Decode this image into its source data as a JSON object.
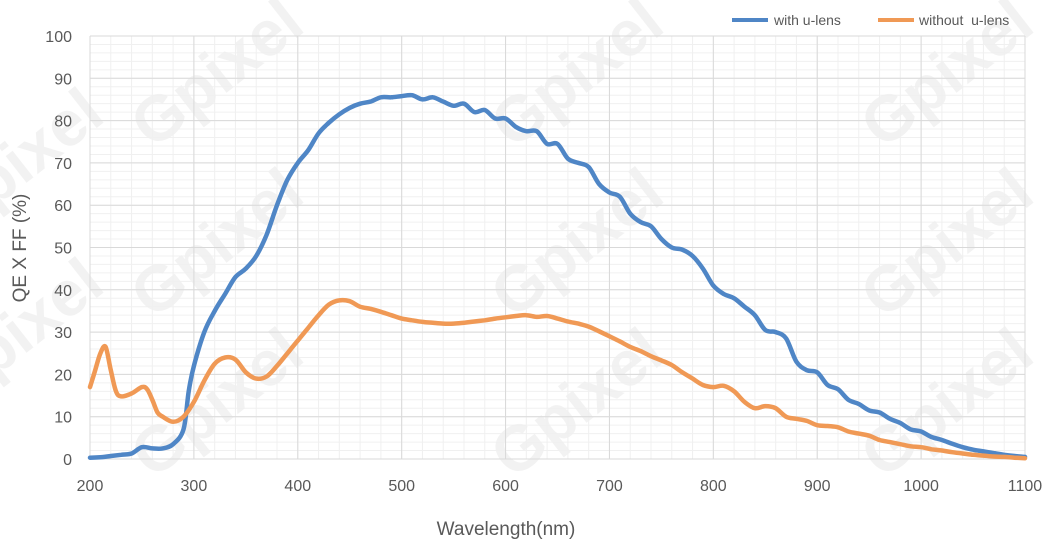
{
  "watermark": {
    "text": "Gpixel"
  },
  "chart_data": {
    "type": "line",
    "title": "",
    "xlabel": "Wavelength(nm)",
    "ylabel": "QE X FF (%)",
    "xlim": [
      200,
      1100
    ],
    "ylim": [
      0,
      100
    ],
    "xticks": [
      200,
      300,
      400,
      500,
      600,
      700,
      800,
      900,
      1000,
      1100
    ],
    "yticks": [
      0,
      10,
      20,
      30,
      40,
      50,
      60,
      70,
      80,
      90,
      100
    ],
    "grid": true,
    "legend_position": "top-right",
    "series": [
      {
        "name": "with u-lens",
        "color": "#4f86c6",
        "x": [
          200,
          210,
          220,
          230,
          240,
          250,
          260,
          270,
          280,
          290,
          295,
          300,
          310,
          320,
          330,
          340,
          350,
          360,
          370,
          380,
          390,
          400,
          410,
          420,
          430,
          440,
          450,
          460,
          470,
          480,
          490,
          500,
          510,
          520,
          530,
          540,
          550,
          560,
          570,
          580,
          590,
          600,
          610,
          620,
          630,
          640,
          650,
          660,
          670,
          680,
          690,
          700,
          710,
          720,
          730,
          740,
          750,
          760,
          770,
          780,
          790,
          800,
          810,
          820,
          830,
          840,
          850,
          860,
          870,
          880,
          890,
          900,
          910,
          920,
          930,
          940,
          950,
          960,
          970,
          980,
          990,
          1000,
          1010,
          1020,
          1030,
          1040,
          1050,
          1060,
          1070,
          1080,
          1090,
          1100
        ],
        "y": [
          0.3,
          0.4,
          0.7,
          1.0,
          1.3,
          2.8,
          2.5,
          2.5,
          3.5,
          7,
          16,
          22,
          30,
          35,
          39,
          43,
          45,
          48,
          53,
          60,
          66,
          70,
          73,
          77,
          79.5,
          81.5,
          83,
          84,
          84.5,
          85.5,
          85.5,
          85.8,
          86,
          85,
          85.5,
          84.5,
          83.5,
          84,
          82,
          82.5,
          80.5,
          80.5,
          78.5,
          77.5,
          77.5,
          74.5,
          74.5,
          71,
          70,
          69,
          65,
          63,
          62,
          58,
          56,
          55,
          52,
          50,
          49.5,
          48,
          45,
          41,
          39,
          38,
          36,
          34,
          30.5,
          30,
          28.5,
          23,
          21,
          20.5,
          17.5,
          16.5,
          14,
          13,
          11.5,
          11,
          9.5,
          8.5,
          7,
          6.5,
          5.2,
          4.5,
          3.6,
          2.8,
          2.2,
          1.8,
          1.4,
          1.0,
          0.7,
          0.5
        ]
      },
      {
        "name": "without  u-lens",
        "color": "#f09955",
        "x": [
          200,
          205,
          210,
          215,
          220,
          225,
          230,
          240,
          250,
          255,
          260,
          265,
          270,
          280,
          290,
          300,
          310,
          320,
          330,
          340,
          350,
          360,
          370,
          380,
          390,
          400,
          410,
          420,
          430,
          440,
          450,
          460,
          470,
          480,
          490,
          500,
          510,
          520,
          530,
          540,
          550,
          560,
          570,
          580,
          590,
          600,
          610,
          620,
          630,
          640,
          650,
          660,
          670,
          680,
          690,
          700,
          710,
          720,
          730,
          740,
          750,
          760,
          770,
          780,
          790,
          800,
          810,
          820,
          830,
          840,
          850,
          860,
          870,
          880,
          890,
          900,
          910,
          920,
          930,
          940,
          950,
          960,
          970,
          980,
          990,
          1000,
          1010,
          1020,
          1030,
          1040,
          1050,
          1060,
          1070,
          1080,
          1090,
          1100
        ],
        "y": [
          17,
          21,
          25,
          26.5,
          21,
          16,
          14.8,
          15.5,
          17,
          16.5,
          14,
          11,
          10,
          8.8,
          10,
          13.5,
          18.5,
          22.5,
          24,
          23.5,
          20.5,
          19,
          19.5,
          22,
          25,
          28,
          31,
          34,
          36.5,
          37.5,
          37.3,
          36,
          35.5,
          34.8,
          34,
          33.2,
          32.8,
          32.4,
          32.2,
          32,
          32,
          32.2,
          32.5,
          32.8,
          33.2,
          33.5,
          33.8,
          34,
          33.6,
          33.8,
          33.2,
          32.5,
          32,
          31.3,
          30.2,
          29,
          27.8,
          26.5,
          25.5,
          24.3,
          23.3,
          22.2,
          20.5,
          19,
          17.5,
          17,
          17.3,
          16,
          13.5,
          12,
          12.5,
          12,
          10,
          9.5,
          9,
          8,
          7.8,
          7.5,
          6.5,
          6,
          5.5,
          4.5,
          4,
          3.5,
          3,
          2.8,
          2.3,
          2,
          1.6,
          1.3,
          1.0,
          0.8,
          0.6,
          0.5,
          0.3,
          0.2
        ]
      }
    ]
  }
}
